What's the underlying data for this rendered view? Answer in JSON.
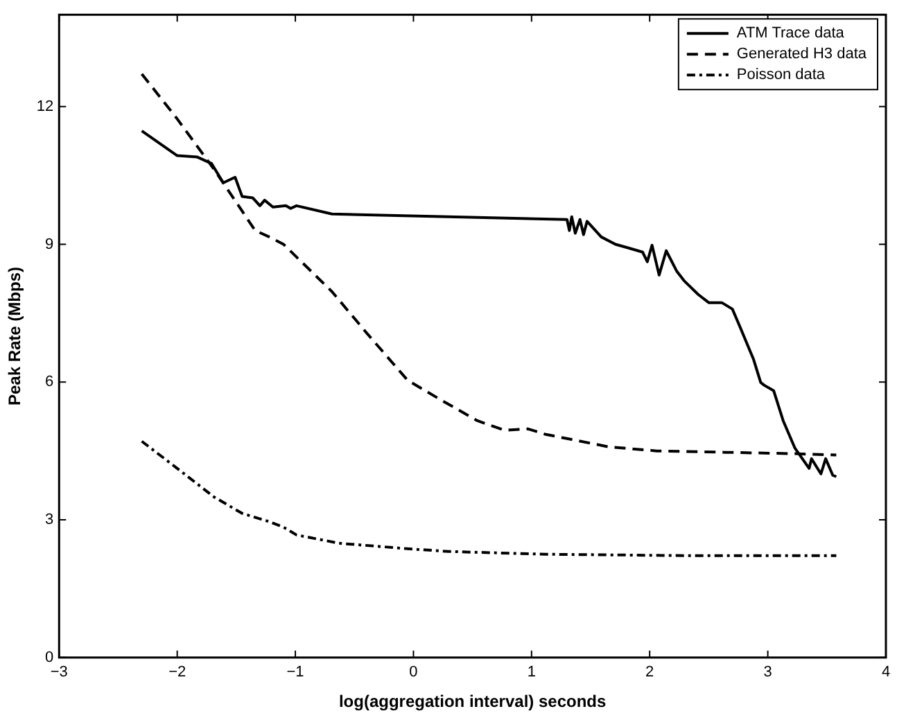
{
  "chart_data": {
    "type": "line",
    "xlabel": "log(aggregation interval) seconds",
    "ylabel": "Peak Rate (Mbps)",
    "xlim": [
      -3,
      4
    ],
    "xticks": [
      -3,
      -2,
      -1,
      0,
      1,
      2,
      3,
      4
    ],
    "ylim": [
      0,
      14
    ],
    "yticks": [
      0,
      3,
      6,
      9,
      12
    ],
    "grid": false,
    "legend": "top right",
    "marker": "none",
    "series": [
      {
        "name": "ATM Trace data",
        "color": "#000000",
        "line_style": "solid",
        "x": [
          -2.3,
          -2.0,
          -1.83,
          -1.71,
          -1.61,
          -1.51,
          -1.45,
          -1.36,
          -1.3,
          -1.26,
          -1.19,
          -1.08,
          -1.04,
          -0.99,
          -0.69,
          1.3,
          1.32,
          1.34,
          1.37,
          1.41,
          1.44,
          1.47,
          1.59,
          1.71,
          1.82,
          1.94,
          1.98,
          2.02,
          2.08,
          2.14,
          2.23,
          2.29,
          2.41,
          2.5,
          2.61,
          2.7,
          2.76,
          2.88,
          2.94,
          2.97,
          3.05,
          3.13,
          3.23,
          3.35,
          3.37,
          3.45,
          3.49,
          3.55,
          3.58
        ],
        "values": [
          11.47,
          10.93,
          10.9,
          10.76,
          10.34,
          10.46,
          10.04,
          10.01,
          9.84,
          9.96,
          9.81,
          9.84,
          9.78,
          9.84,
          9.66,
          9.54,
          9.3,
          9.6,
          9.24,
          9.54,
          9.21,
          9.5,
          9.16,
          9.0,
          8.92,
          8.83,
          8.62,
          8.98,
          8.33,
          8.86,
          8.41,
          8.21,
          7.91,
          7.73,
          7.73,
          7.59,
          7.23,
          6.49,
          5.99,
          5.93,
          5.81,
          5.16,
          4.56,
          4.12,
          4.33,
          4.0,
          4.33,
          3.97,
          3.94
        ]
      },
      {
        "name": "Generated H3 data",
        "color": "#000000",
        "line_style": "dashed",
        "x": [
          -2.3,
          -2.0,
          -1.69,
          -1.34,
          -1.22,
          -1.1,
          -0.69,
          -0.4,
          -0.05,
          0.24,
          0.54,
          0.77,
          0.97,
          1.12,
          1.36,
          1.65,
          2.06,
          2.64,
          3.23,
          3.58
        ],
        "values": [
          12.71,
          11.73,
          10.64,
          9.3,
          9.16,
          9.0,
          7.97,
          7.08,
          6.04,
          5.6,
          5.16,
          4.95,
          4.98,
          4.86,
          4.74,
          4.59,
          4.5,
          4.47,
          4.44,
          4.41
        ]
      },
      {
        "name": "Poisson data",
        "color": "#000000",
        "line_style": "dashdot",
        "x": [
          -2.3,
          -2.0,
          -1.69,
          -1.45,
          -1.22,
          -1.1,
          -0.99,
          -0.63,
          -0.05,
          0.3,
          1.12,
          2.29,
          3.58
        ],
        "values": [
          4.71,
          4.12,
          3.5,
          3.14,
          2.96,
          2.84,
          2.67,
          2.49,
          2.37,
          2.31,
          2.25,
          2.22,
          2.22
        ]
      }
    ]
  }
}
